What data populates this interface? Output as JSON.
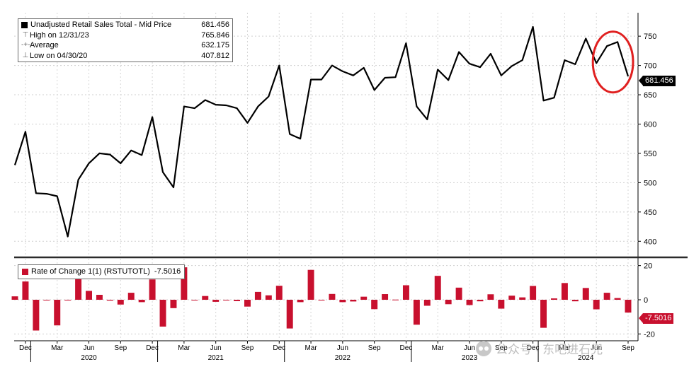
{
  "chart_data": [
    {
      "type": "line",
      "legend": {
        "title": "Unadjusted Retail Sales Total - Mid Price",
        "title_value": "681.456",
        "rows": [
          {
            "glyph": "⊤",
            "label": "High on 12/31/23",
            "value": "765.846"
          },
          {
            "glyph": "-+-",
            "label": "Average",
            "value": "632.175"
          },
          {
            "glyph": "⊥",
            "label": "Low on 04/30/20",
            "value": "407.812"
          }
        ]
      },
      "last_value_tag": "681.456",
      "ylim": [
        375,
        790
      ],
      "yticks": [
        400,
        450,
        500,
        550,
        600,
        650,
        700,
        750
      ],
      "grid": true,
      "color": "#000000",
      "x": [
        "2019-11",
        "2019-12",
        "2020-01",
        "2020-02",
        "2020-03",
        "2020-04",
        "2020-05",
        "2020-06",
        "2020-07",
        "2020-08",
        "2020-09",
        "2020-10",
        "2020-11",
        "2020-12",
        "2021-01",
        "2021-02",
        "2021-03",
        "2021-04",
        "2021-05",
        "2021-06",
        "2021-07",
        "2021-08",
        "2021-09",
        "2021-10",
        "2021-11",
        "2021-12",
        "2022-01",
        "2022-02",
        "2022-03",
        "2022-04",
        "2022-05",
        "2022-06",
        "2022-07",
        "2022-08",
        "2022-09",
        "2022-10",
        "2022-11",
        "2022-12",
        "2023-01",
        "2023-02",
        "2023-03",
        "2023-04",
        "2023-05",
        "2023-06",
        "2023-07",
        "2023-08",
        "2023-09",
        "2023-10",
        "2023-11",
        "2023-12",
        "2024-01",
        "2024-02",
        "2024-03",
        "2024-04",
        "2024-05",
        "2024-06",
        "2024-07",
        "2024-08",
        "2024-09"
      ],
      "values": [
        530,
        587,
        482,
        481,
        477,
        408,
        505,
        533,
        550,
        548,
        533,
        555,
        547,
        612,
        518,
        492,
        630,
        627,
        641,
        633,
        632,
        627,
        602,
        630,
        647,
        700,
        583,
        575,
        676,
        676,
        700,
        690,
        683,
        696,
        658,
        679,
        680,
        738,
        630,
        608,
        693,
        675,
        723,
        703,
        697,
        720,
        683,
        699,
        709,
        766,
        640,
        645,
        709,
        702,
        746,
        704,
        733,
        740,
        681.456
      ]
    },
    {
      "type": "bar",
      "legend": {
        "label": "Rate of Change 1(1) (RSTUTOTL)",
        "value": "-7.5016"
      },
      "last_value_tag": "-7.5016",
      "ylim": [
        -24,
        24
      ],
      "yticks": [
        -20,
        0,
        20
      ],
      "grid": true,
      "color": "#c8102e",
      "x": [
        "2019-11",
        "2019-12",
        "2020-01",
        "2020-02",
        "2020-03",
        "2020-04",
        "2020-05",
        "2020-06",
        "2020-07",
        "2020-08",
        "2020-09",
        "2020-10",
        "2020-11",
        "2020-12",
        "2021-01",
        "2021-02",
        "2021-03",
        "2021-04",
        "2021-05",
        "2021-06",
        "2021-07",
        "2021-08",
        "2021-09",
        "2021-10",
        "2021-11",
        "2021-12",
        "2022-01",
        "2022-02",
        "2022-03",
        "2022-04",
        "2022-05",
        "2022-06",
        "2022-07",
        "2022-08",
        "2022-09",
        "2022-10",
        "2022-11",
        "2022-12",
        "2023-01",
        "2023-02",
        "2023-03",
        "2023-04",
        "2023-05",
        "2023-06",
        "2023-07",
        "2023-08",
        "2023-09",
        "2023-10",
        "2023-11",
        "2023-12",
        "2024-01",
        "2024-02",
        "2024-03",
        "2024-04",
        "2024-05",
        "2024-06",
        "2024-07",
        "2024-08",
        "2024-09"
      ],
      "values": [
        2,
        10.7,
        -18,
        -0.2,
        -15,
        0,
        19,
        5.2,
        2.9,
        -0.5,
        -2.8,
        4.1,
        -1.4,
        11.9,
        -15.7,
        -4.9,
        19,
        -0.4,
        2.2,
        -1.2,
        -0.2,
        -0.8,
        -4,
        4.6,
        2.6,
        8.2,
        -16.8,
        -1.4,
        17.5,
        0,
        3.4,
        -1.4,
        -1,
        1.8,
        -5.5,
        3.3,
        0.1,
        8.5,
        -14.6,
        -3.5,
        14,
        -2.6,
        7.1,
        -3.1,
        -0.9,
        3.2,
        -5.2,
        2.4,
        1.4,
        8.1,
        -16.4,
        0.8,
        9.8,
        -0.9,
        6.9,
        -5.6,
        4.1,
        1,
        -7.5016
      ]
    }
  ],
  "x_axis": {
    "months": [
      {
        "label": "Dec",
        "x": "2019-12"
      },
      {
        "label": "Mar",
        "x": "2020-03"
      },
      {
        "label": "Jun",
        "x": "2020-06"
      },
      {
        "label": "Sep",
        "x": "2020-09"
      },
      {
        "label": "Dec",
        "x": "2020-12"
      },
      {
        "label": "Mar",
        "x": "2021-03"
      },
      {
        "label": "Jun",
        "x": "2021-06"
      },
      {
        "label": "Sep",
        "x": "2021-09"
      },
      {
        "label": "Dec",
        "x": "2021-12"
      },
      {
        "label": "Mar",
        "x": "2022-03"
      },
      {
        "label": "Jun",
        "x": "2022-06"
      },
      {
        "label": "Sep",
        "x": "2022-09"
      },
      {
        "label": "Dec",
        "x": "2022-12"
      },
      {
        "label": "Mar",
        "x": "2023-03"
      },
      {
        "label": "Jun",
        "x": "2023-06"
      },
      {
        "label": "Sep",
        "x": "2023-09"
      },
      {
        "label": "Dec",
        "x": "2023-12"
      },
      {
        "label": "Mar",
        "x": "2024-03"
      },
      {
        "label": "Jun",
        "x": "2024-06"
      },
      {
        "label": "Sep",
        "x": "2024-09"
      }
    ],
    "years": [
      {
        "label": "2020",
        "x": "2020-06"
      },
      {
        "label": "2021",
        "x": "2021-06"
      },
      {
        "label": "2022",
        "x": "2022-06"
      },
      {
        "label": "2023",
        "x": "2023-06"
      },
      {
        "label": "2024",
        "x": "2024-05"
      }
    ],
    "year_dividers": [
      "2020-01",
      "2021-01",
      "2022-01",
      "2023-01",
      "2024-01"
    ]
  },
  "highlight": {
    "shape": "ellipse",
    "color": "#e02020",
    "around_x": [
      "2024-06",
      "2024-09"
    ]
  },
  "watermark": {
    "text": "公众号 · 东吧进石兜"
  }
}
